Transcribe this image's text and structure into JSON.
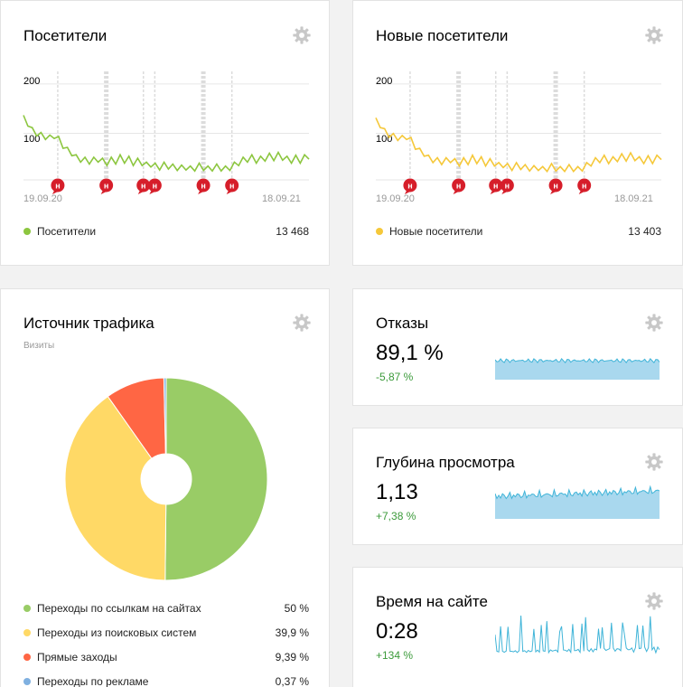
{
  "visitors": {
    "title": "Посетители",
    "y_tick_top": "200",
    "y_tick_mid": "100",
    "x_start": "19.09.20",
    "x_end": "18.09.21",
    "legend_label": "Посетители",
    "legend_value": "13 468",
    "color": "#8cc63f"
  },
  "new_visitors": {
    "title": "Новые посетители",
    "y_tick_top": "200",
    "y_tick_mid": "100",
    "x_start": "19.09.20",
    "x_end": "18.09.21",
    "legend_label": "Новые посетители",
    "legend_value": "13 403",
    "color": "#f5c83a"
  },
  "annotation_marker": "н",
  "traffic": {
    "title": "Источник трафика",
    "subtitle": "Визиты",
    "items": [
      {
        "label": "Переходы по ссылкам на сайтах",
        "value": "50 %",
        "color": "#99cc66"
      },
      {
        "label": "Переходы из поисковых систем",
        "value": "39,9 %",
        "color": "#ffd966"
      },
      {
        "label": "Прямые заходы",
        "value": "9,39 %",
        "color": "#ff6644"
      },
      {
        "label": "Переходы по рекламе",
        "value": "0,37 %",
        "color": "#7fb0e0"
      }
    ]
  },
  "bounce": {
    "title": "Отказы",
    "value": "89,1 %",
    "delta": "-5,87 %",
    "level": 0.89
  },
  "depth": {
    "title": "Глубина просмотра",
    "value": "1,13",
    "delta": "+7,38 %"
  },
  "time": {
    "title": "Время на сайте",
    "value": "0:28",
    "delta": "+134 %"
  },
  "chart_data": [
    {
      "type": "line",
      "name": "visitors",
      "x_labels": [
        "19.09.20",
        "18.09.21"
      ],
      "ylim": [
        0,
        220
      ],
      "series": [
        {
          "name": "Посетители",
          "values": [
            125,
            115,
            100,
            95,
            90,
            88,
            85,
            90,
            82,
            70,
            60,
            55,
            45,
            42,
            40,
            38,
            40,
            42,
            38,
            35,
            40,
            38,
            45,
            40,
            42,
            35,
            38,
            35,
            30,
            32,
            28,
            26,
            30,
            28,
            26,
            25,
            24,
            26,
            22,
            24,
            28,
            25,
            22,
            24,
            26,
            24,
            22,
            25,
            30,
            35,
            40,
            42,
            45,
            40,
            42,
            44,
            48,
            45,
            50,
            46,
            42,
            40,
            44,
            40,
            45,
            48
          ]
        }
      ],
      "total": "13 468"
    },
    {
      "type": "line",
      "name": "new_visitors",
      "x_labels": [
        "19.09.20",
        "18.09.21"
      ],
      "ylim": [
        0,
        220
      ],
      "series": [
        {
          "name": "Новые посетители",
          "values": [
            120,
            112,
            98,
            92,
            88,
            86,
            84,
            88,
            80,
            68,
            58,
            54,
            44,
            41,
            39,
            37,
            39,
            41,
            37,
            34,
            39,
            37,
            44,
            39,
            41,
            34,
            37,
            34,
            29,
            31,
            27,
            25,
            29,
            27,
            25,
            24,
            23,
            25,
            21,
            23,
            27,
            24,
            21,
            23,
            25,
            23,
            21,
            24,
            29,
            34,
            39,
            41,
            44,
            39,
            41,
            43,
            47,
            44,
            49,
            45,
            41,
            39,
            43,
            39,
            44,
            47
          ]
        }
      ],
      "total": "13 403"
    },
    {
      "type": "pie",
      "name": "traffic_sources",
      "categories": [
        "Переходы по ссылкам на сайтах",
        "Переходы из поисковых систем",
        "Прямые заходы",
        "Переходы по рекламе"
      ],
      "values": [
        50,
        39.9,
        9.39,
        0.37
      ]
    }
  ]
}
